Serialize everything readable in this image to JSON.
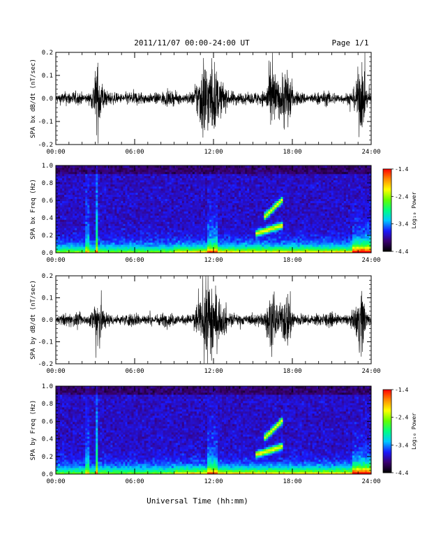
{
  "header": {
    "title": "2011/11/07  00:00-24:00 UT",
    "page": "Page 1/1"
  },
  "footer": {
    "xlabel": "Universal Time (hh:mm)"
  },
  "colorbar": {
    "ticks": [
      "-1.4",
      "-2.4",
      "-3.4",
      "-4.4"
    ],
    "label": "Log₁₀ Power",
    "range": [
      -4.4,
      -1.4
    ],
    "colors": [
      "#000000",
      "#3a0070",
      "#1a1aff",
      "#00c8ff",
      "#00ff7f",
      "#64ff00",
      "#ffff00",
      "#ff8c00",
      "#ff0000"
    ]
  },
  "chart_data": [
    {
      "type": "line",
      "ylabel": "SPA bx dB/dt (nT/sec)",
      "x_ticks": [
        "00:00",
        "06:00",
        "12:00",
        "18:00",
        "24:00"
      ],
      "y_ticks": [
        "0.2",
        "0.1",
        "0.0",
        "-0.1",
        "-0.2"
      ],
      "xlim": [
        0,
        24
      ],
      "ylim": [
        -0.2,
        0.2
      ],
      "bursts": [
        [
          3.2,
          0.2
        ],
        [
          11.3,
          0.2
        ],
        [
          12.0,
          0.15
        ],
        [
          16.5,
          0.15
        ],
        [
          17.5,
          0.15
        ],
        [
          23.2,
          0.2
        ]
      ]
    },
    {
      "type": "heatmap",
      "ylabel": "SPA bx Freq (Hz)",
      "x_ticks": [
        "00:00",
        "06:00",
        "12:00",
        "18:00",
        "24:00"
      ],
      "y_ticks": [
        "1.0",
        "0.8",
        "0.6",
        "0.4",
        "0.2",
        "0.0"
      ],
      "xlim": [
        0,
        24
      ],
      "ylim": [
        0,
        1.0
      ],
      "features": [
        {
          "t_start": 15.2,
          "t_end": 17.3,
          "f_start": 0.22,
          "f_end": 0.32
        },
        {
          "t_start": 15.8,
          "t_end": 17.3,
          "f_start": 0.4,
          "f_end": 0.62
        }
      ]
    },
    {
      "type": "line",
      "ylabel": "SPA by dB/dt (nT/sec)",
      "x_ticks": [
        "00:00",
        "06:00",
        "12:00",
        "18:00",
        "24:00"
      ],
      "y_ticks": [
        "0.2",
        "0.1",
        "0.0",
        "-0.1",
        "-0.2"
      ],
      "xlim": [
        0,
        24
      ],
      "ylim": [
        -0.2,
        0.2
      ],
      "bursts": [
        [
          3.2,
          0.2
        ],
        [
          11.6,
          0.2
        ],
        [
          12.0,
          0.15
        ],
        [
          16.5,
          0.12
        ],
        [
          17.6,
          0.12
        ],
        [
          23.2,
          0.2
        ]
      ]
    },
    {
      "type": "heatmap",
      "ylabel": "SPA by Freq (Hz)",
      "x_ticks": [
        "00:00",
        "06:00",
        "12:00",
        "18:00",
        "24:00"
      ],
      "y_ticks": [
        "1.0",
        "0.8",
        "0.6",
        "0.4",
        "0.2",
        "0.0"
      ],
      "xlim": [
        0,
        24
      ],
      "ylim": [
        0,
        1.0
      ],
      "features": [
        {
          "t_start": 15.2,
          "t_end": 17.3,
          "f_start": 0.22,
          "f_end": 0.32
        },
        {
          "t_start": 15.8,
          "t_end": 17.3,
          "f_start": 0.4,
          "f_end": 0.62
        }
      ]
    }
  ]
}
